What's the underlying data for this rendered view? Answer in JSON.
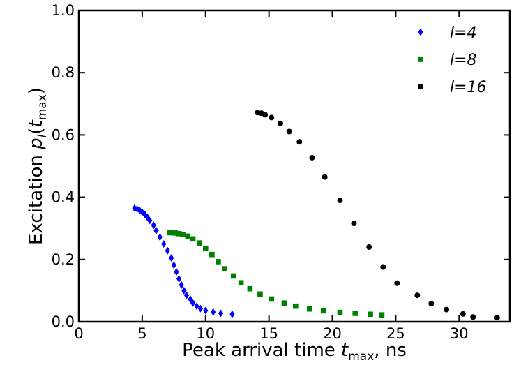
{
  "chart_data": {
    "type": "scatter",
    "xlabel": "Peak arrival time t_max, ns",
    "ylabel": "Excitation p_l(t_max)",
    "xlim": [
      0,
      34
    ],
    "ylim": [
      0,
      1.0
    ],
    "xticks": [
      0,
      5,
      10,
      15,
      20,
      25,
      30
    ],
    "yticks": [
      0.0,
      0.2,
      0.4,
      0.6,
      0.8,
      1.0
    ],
    "xtick_labels": [
      "0",
      "5",
      "10",
      "15",
      "20",
      "25",
      "30"
    ],
    "ytick_labels": [
      "0.0",
      "0.2",
      "0.4",
      "0.6",
      "0.8",
      "1.0"
    ],
    "legend_position": "top-right",
    "grid": false,
    "series": [
      {
        "name": "l=4",
        "color": "#0000ff",
        "marker": "diamond",
        "x": [
          4.4,
          4.6,
          4.8,
          5.0,
          5.2,
          5.4,
          5.6,
          5.9,
          6.1,
          6.4,
          6.7,
          7.0,
          7.3,
          7.5,
          7.7,
          7.9,
          8.1,
          8.3,
          8.5,
          8.8,
          9.0,
          9.3,
          9.6,
          10.0,
          10.6,
          11.2,
          12.1
        ],
        "y": [
          0.365,
          0.362,
          0.358,
          0.352,
          0.345,
          0.336,
          0.325,
          0.31,
          0.293,
          0.272,
          0.25,
          0.228,
          0.205,
          0.182,
          0.16,
          0.138,
          0.118,
          0.1,
          0.085,
          0.072,
          0.06,
          0.05,
          0.042,
          0.036,
          0.031,
          0.027,
          0.024
        ]
      },
      {
        "name": "l=8",
        "color": "#008000",
        "marker": "square",
        "x": [
          7.2,
          7.6,
          7.9,
          8.2,
          8.6,
          9.0,
          9.5,
          10.0,
          10.5,
          11.0,
          11.5,
          12.2,
          12.8,
          13.5,
          14.3,
          15.2,
          16.2,
          17.1,
          18.2,
          19.3,
          20.6,
          21.8,
          23.0,
          23.9
        ],
        "y": [
          0.286,
          0.285,
          0.283,
          0.28,
          0.275,
          0.266,
          0.253,
          0.236,
          0.216,
          0.193,
          0.17,
          0.147,
          0.125,
          0.106,
          0.089,
          0.073,
          0.06,
          0.05,
          0.041,
          0.035,
          0.03,
          0.027,
          0.024,
          0.022
        ]
      },
      {
        "name": "l=16",
        "color": "#000000",
        "marker": "circle",
        "x": [
          14.1,
          14.4,
          14.7,
          15.2,
          15.9,
          16.6,
          17.4,
          18.4,
          19.4,
          20.6,
          21.7,
          22.9,
          24.0,
          25.1,
          26.7,
          27.8,
          29.0,
          30.3,
          31.1,
          33.0
        ],
        "y": [
          0.672,
          0.67,
          0.665,
          0.656,
          0.637,
          0.611,
          0.578,
          0.527,
          0.465,
          0.39,
          0.316,
          0.24,
          0.176,
          0.124,
          0.085,
          0.058,
          0.039,
          0.025,
          0.015,
          0.013
        ]
      }
    ]
  }
}
